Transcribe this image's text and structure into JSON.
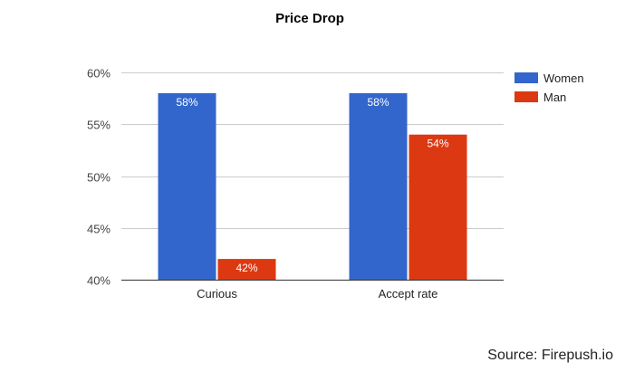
{
  "chart_data": {
    "type": "bar",
    "title": "Price Drop",
    "categories": [
      "Curious",
      "Accept rate"
    ],
    "series": [
      {
        "name": "Women",
        "values": [
          58,
          58
        ],
        "color": "#3366cc"
      },
      {
        "name": "Man",
        "values": [
          42,
          54
        ],
        "color": "#dc3912"
      }
    ],
    "value_labels": [
      [
        "58%",
        "58%"
      ],
      [
        "42%",
        "54%"
      ]
    ],
    "ylim": [
      40,
      60
    ],
    "yticks": [
      40,
      45,
      50,
      55,
      60
    ],
    "ytick_labels": [
      "40%",
      "45%",
      "50%",
      "55%",
      "60%"
    ],
    "grid": true,
    "legend_position": "right"
  },
  "source": "Source: Firepush.io"
}
